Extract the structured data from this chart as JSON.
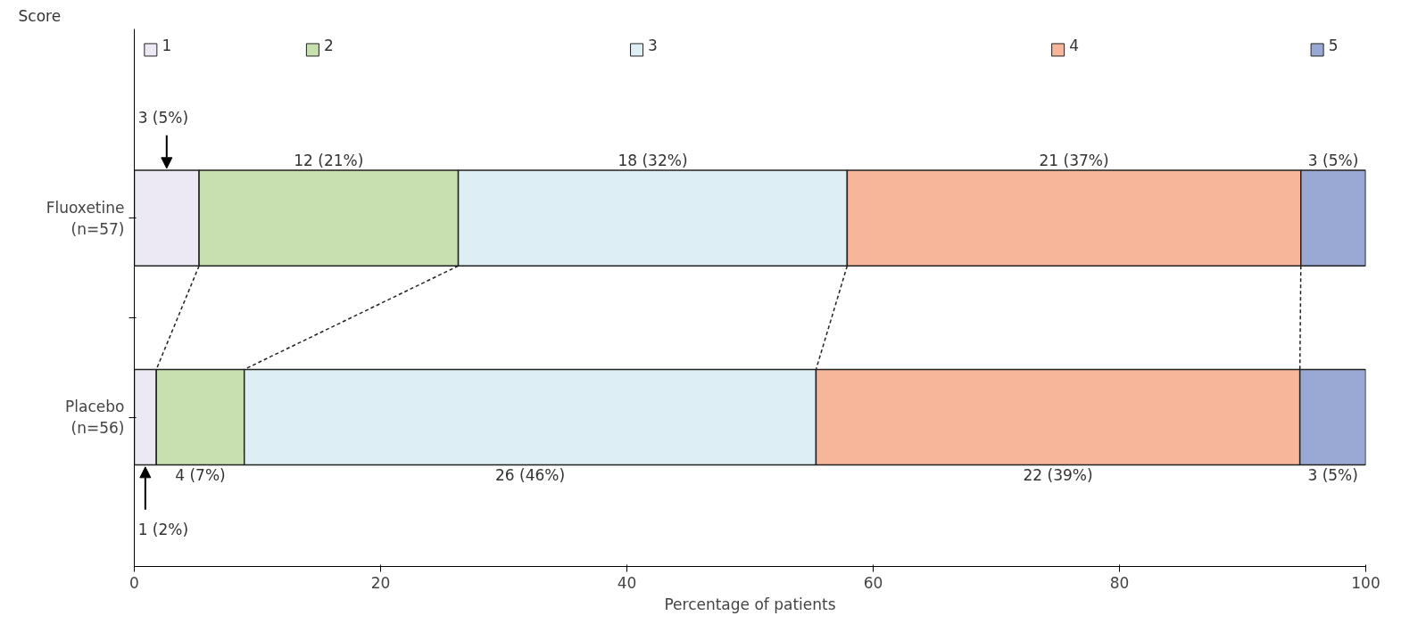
{
  "chart_data": {
    "type": "bar",
    "orientation": "horizontal",
    "stacked": true,
    "categories": [
      "Fluoxetine\n(n=57)",
      "Placebo\n(n=56)"
    ],
    "legend_title": "Score",
    "legend": "top",
    "xlabel": "Percentage of patients",
    "xlim": [
      0,
      100
    ],
    "xticks": [
      0,
      20,
      40,
      60,
      80,
      100
    ],
    "grid": false,
    "series": [
      {
        "name": "1",
        "color": "#ece9f5",
        "values": [
          5.26,
          1.79
        ],
        "value_labels": [
          "3 (5%)",
          "1 (2%)"
        ]
      },
      {
        "name": "2",
        "color": "#c8dfb0",
        "values": [
          21.05,
          7.14
        ],
        "value_labels": [
          "12 (21%)",
          "4 (7%)"
        ]
      },
      {
        "name": "3",
        "color": "#ddeff4",
        "values": [
          31.58,
          46.43
        ],
        "value_labels": [
          "18 (32%)",
          "26 (46%)"
        ]
      },
      {
        "name": "4",
        "color": "#f7b59a",
        "values": [
          36.84,
          39.29
        ],
        "value_labels": [
          "21 (37%)",
          "22 (39%)"
        ]
      },
      {
        "name": "5",
        "color": "#99a9d3",
        "values": [
          5.26,
          5.36
        ],
        "value_labels": [
          "3 (5%)",
          "3 (5%)"
        ]
      }
    ]
  }
}
